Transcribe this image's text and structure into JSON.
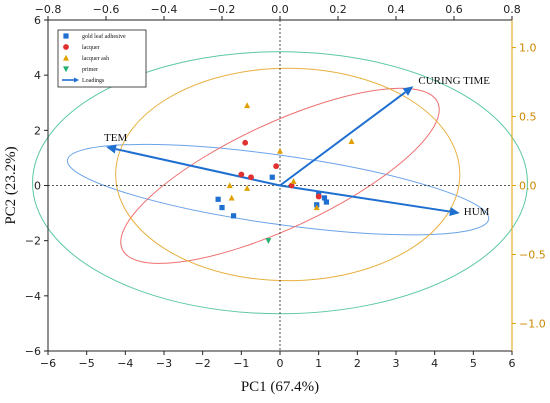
{
  "chart_data": {
    "type": "scatter",
    "subtype": "pca-biplot",
    "xlabel": "PC1 (67.4%)",
    "ylabel": "PC2 (23.2%)",
    "xlim": [
      -6,
      6
    ],
    "ylim": [
      -6,
      6
    ],
    "x_ticks": [
      -6,
      -5,
      -4,
      -3,
      -2,
      -1,
      0,
      1,
      2,
      3,
      4,
      5,
      6
    ],
    "y_ticks": [
      -6,
      -4,
      -2,
      0,
      2,
      4,
      6
    ],
    "top_xlim": [
      -0.8,
      0.8
    ],
    "top_x_ticks": [
      "-0.8",
      "-0.6",
      "-0.4",
      "-0.2",
      "0.0",
      "0.2",
      "0.4",
      "0.6",
      "0.8"
    ],
    "right_ylim": [
      -1.2,
      1.2
    ],
    "right_y_ticks": [
      "1.0",
      "0.5",
      "0.0",
      "-0.5",
      "-1.0"
    ],
    "grid": false,
    "legend_position": "top-left",
    "series": [
      {
        "name": "gold leaf adhesive",
        "marker": "square",
        "color": "#1f6fd1",
        "points": [
          [
            -1.6,
            -0.5
          ],
          [
            -1.5,
            -0.8
          ],
          [
            -1.2,
            -1.1
          ],
          [
            -0.2,
            0.3
          ],
          [
            1.0,
            -0.3
          ],
          [
            1.2,
            -0.6
          ],
          [
            0.95,
            -0.7
          ],
          [
            1.15,
            -0.45
          ]
        ]
      },
      {
        "name": "lacquer",
        "marker": "circle",
        "color": "#e03030",
        "points": [
          [
            -0.9,
            1.55
          ],
          [
            -1.0,
            0.4
          ],
          [
            -0.75,
            0.3
          ],
          [
            -0.1,
            0.7
          ],
          [
            0.3,
            0.0
          ],
          [
            1.0,
            -0.4
          ]
        ]
      },
      {
        "name": "lacquer ash",
        "marker": "triangle-up",
        "color": "#e0a000",
        "points": [
          [
            -1.3,
            0.0
          ],
          [
            -1.25,
            -0.45
          ],
          [
            -0.85,
            2.9
          ],
          [
            0.0,
            1.25
          ],
          [
            -0.85,
            -0.1
          ],
          [
            0.35,
            0.15
          ],
          [
            1.85,
            1.6
          ],
          [
            0.95,
            -0.8
          ]
        ]
      },
      {
        "name": "primer",
        "marker": "triangle-down",
        "color": "#20b070",
        "points": [
          [
            -0.3,
            -2.0
          ]
        ]
      }
    ],
    "loadings": {
      "name": "Loadings",
      "color": "#1f6fd1",
      "vectors": [
        {
          "label": "CURING TIME",
          "x": 0.46,
          "y": 0.72
        },
        {
          "label": "TEM",
          "x": -0.6,
          "y": 0.28
        },
        {
          "label": "HUM",
          "x": 0.62,
          "y": -0.2
        }
      ]
    },
    "ellipses": [
      {
        "group": "gold leaf adhesive",
        "color": "#6aa3e8",
        "cx": -0.05,
        "cy": -0.15,
        "rx": 5.5,
        "ry": 1.25,
        "rotation_deg": 8
      },
      {
        "group": "lacquer",
        "color": "#ee7070",
        "cx": 0.0,
        "cy": 0.35,
        "rx": 4.5,
        "ry": 1.9,
        "rotation_deg": -25
      },
      {
        "group": "lacquer ash",
        "color": "#e8b040",
        "cx": 0.2,
        "cy": 0.4,
        "rx": 4.45,
        "ry": 3.85,
        "rotation_deg": 0
      },
      {
        "group": "primer",
        "color": "#5cc8a0",
        "cx": 0.0,
        "cy": 0.1,
        "rx": 6.4,
        "ry": 4.75,
        "rotation_deg": 0
      }
    ],
    "colors": {
      "bottom_axis": "#222222",
      "right_axis": "#e0a000",
      "loading_arrow": "#1f6fd1"
    }
  }
}
